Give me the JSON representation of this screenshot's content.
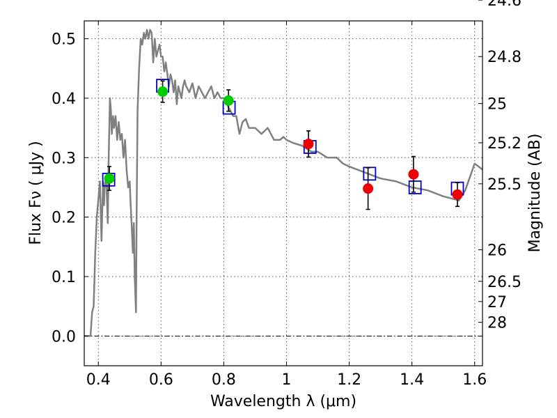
{
  "chart_data": {
    "type": "scatter",
    "xlabel": "Wavelength  λ (μm)",
    "ylabel": "Flux  Fν  ( μJy )",
    "y2label": "Magnitude (AB)",
    "xlim": [
      0.355,
      1.625
    ],
    "ylim": [
      -0.05,
      0.53
    ],
    "grid": true,
    "x_ticks": [
      {
        "value": 0.4,
        "label": "0.4"
      },
      {
        "value": 0.6,
        "label": "0.6"
      },
      {
        "value": 0.8,
        "label": "0.8"
      },
      {
        "value": 1.0,
        "label": "1"
      },
      {
        "value": 1.2,
        "label": "1.2"
      },
      {
        "value": 1.4,
        "label": "1.4"
      },
      {
        "value": 1.6,
        "label": "1.6"
      }
    ],
    "y_ticks": [
      {
        "value": 0.0,
        "label": "0.0"
      },
      {
        "value": 0.1,
        "label": "0.1"
      },
      {
        "value": 0.2,
        "label": "0.2"
      },
      {
        "value": 0.3,
        "label": "0.3"
      },
      {
        "value": 0.4,
        "label": "0.4"
      },
      {
        "value": 0.5,
        "label": "0.5"
      }
    ],
    "y2_ticks": [
      {
        "flux": 0.565,
        "label": "24.6"
      },
      {
        "flux": 0.47,
        "label": "24.8"
      },
      {
        "flux": 0.391,
        "label": "25"
      },
      {
        "flux": 0.325,
        "label": "25.2"
      },
      {
        "flux": 0.256,
        "label": "25.5"
      },
      {
        "flux": 0.145,
        "label": "26"
      },
      {
        "flux": 0.092,
        "label": "26.5"
      },
      {
        "flux": 0.058,
        "label": "27"
      },
      {
        "flux": 0.023,
        "label": "28"
      }
    ],
    "zero_line": 0.0,
    "colors": {
      "template": "#808080",
      "model_box": "#0000cc",
      "optical": "#00cc00",
      "nir": "#ee0000",
      "errorbar": "#000000"
    },
    "series": [
      {
        "type": "line",
        "color": "#808080",
        "x": [
          0.355,
          0.375,
          0.38,
          0.385,
          0.39,
          0.395,
          0.4,
          0.405,
          0.41,
          0.415,
          0.418,
          0.42,
          0.425,
          0.43,
          0.433,
          0.437,
          0.44,
          0.443,
          0.447,
          0.45,
          0.455,
          0.46,
          0.465,
          0.47,
          0.475,
          0.48,
          0.485,
          0.49,
          0.495,
          0.5,
          0.503,
          0.506,
          0.51,
          0.513,
          0.516,
          0.518,
          0.52,
          0.522,
          0.525,
          0.53,
          0.535,
          0.54,
          0.545,
          0.55,
          0.555,
          0.56,
          0.565,
          0.57,
          0.575,
          0.58,
          0.585,
          0.59,
          0.595,
          0.6,
          0.605,
          0.61,
          0.615,
          0.62,
          0.625,
          0.63,
          0.635,
          0.64,
          0.645,
          0.65,
          0.655,
          0.66,
          0.665,
          0.67,
          0.675,
          0.68,
          0.69,
          0.7,
          0.71,
          0.72,
          0.73,
          0.74,
          0.75,
          0.76,
          0.77,
          0.78,
          0.79,
          0.8,
          0.81,
          0.82,
          0.83,
          0.84,
          0.85,
          0.86,
          0.87,
          0.88,
          0.9,
          0.92,
          0.94,
          0.96,
          0.98,
          0.99,
          1.0,
          1.02,
          1.05,
          1.08,
          1.1,
          1.13,
          1.16,
          1.18,
          1.2,
          1.25,
          1.3,
          1.35,
          1.4,
          1.45,
          1.5,
          1.55,
          1.57,
          1.6,
          1.625
        ],
        "y": [
          0.0,
          0.0,
          0.04,
          0.05,
          0.14,
          0.2,
          0.23,
          0.26,
          0.16,
          0.26,
          0.22,
          0.25,
          0.27,
          0.19,
          0.3,
          0.4,
          0.38,
          0.34,
          0.37,
          0.35,
          0.37,
          0.33,
          0.36,
          0.33,
          0.34,
          0.3,
          0.33,
          0.28,
          0.25,
          0.26,
          0.22,
          0.19,
          0.14,
          0.19,
          0.1,
          0.07,
          0.04,
          0.2,
          0.38,
          0.45,
          0.5,
          0.49,
          0.51,
          0.5,
          0.515,
          0.5,
          0.515,
          0.51,
          0.46,
          0.5,
          0.47,
          0.48,
          0.49,
          0.47,
          0.47,
          0.445,
          0.46,
          0.44,
          0.42,
          0.44,
          0.43,
          0.41,
          0.43,
          0.39,
          0.42,
          0.41,
          0.4,
          0.42,
          0.43,
          0.42,
          0.41,
          0.425,
          0.4,
          0.42,
          0.41,
          0.4,
          0.41,
          0.42,
          0.4,
          0.41,
          0.4,
          0.4,
          0.39,
          0.38,
          0.37,
          0.37,
          0.34,
          0.36,
          0.365,
          0.35,
          0.35,
          0.34,
          0.35,
          0.33,
          0.33,
          0.335,
          0.33,
          0.325,
          0.32,
          0.31,
          0.31,
          0.3,
          0.3,
          0.29,
          0.285,
          0.275,
          0.265,
          0.26,
          0.25,
          0.245,
          0.235,
          0.228,
          0.245,
          0.29,
          0.28
        ]
      },
      {
        "type": "boxes",
        "color": "#0000cc",
        "x": [
          0.433,
          0.605,
          0.817,
          1.075,
          1.265,
          1.41,
          1.545
        ],
        "y": [
          0.263,
          0.421,
          0.384,
          0.318,
          0.273,
          0.25,
          0.248
        ]
      },
      {
        "type": "points",
        "color": "#00cc00",
        "x": [
          0.435,
          0.605,
          0.815
        ],
        "y": [
          0.265,
          0.411,
          0.396
        ],
        "err": [
          0.02,
          0.018,
          0.018
        ]
      },
      {
        "type": "points",
        "color": "#ee0000",
        "x": [
          1.07,
          1.26,
          1.405,
          1.545
        ],
        "y": [
          0.323,
          0.248,
          0.272,
          0.238
        ],
        "err": [
          0.022,
          0.035,
          0.03,
          0.02
        ]
      }
    ]
  }
}
